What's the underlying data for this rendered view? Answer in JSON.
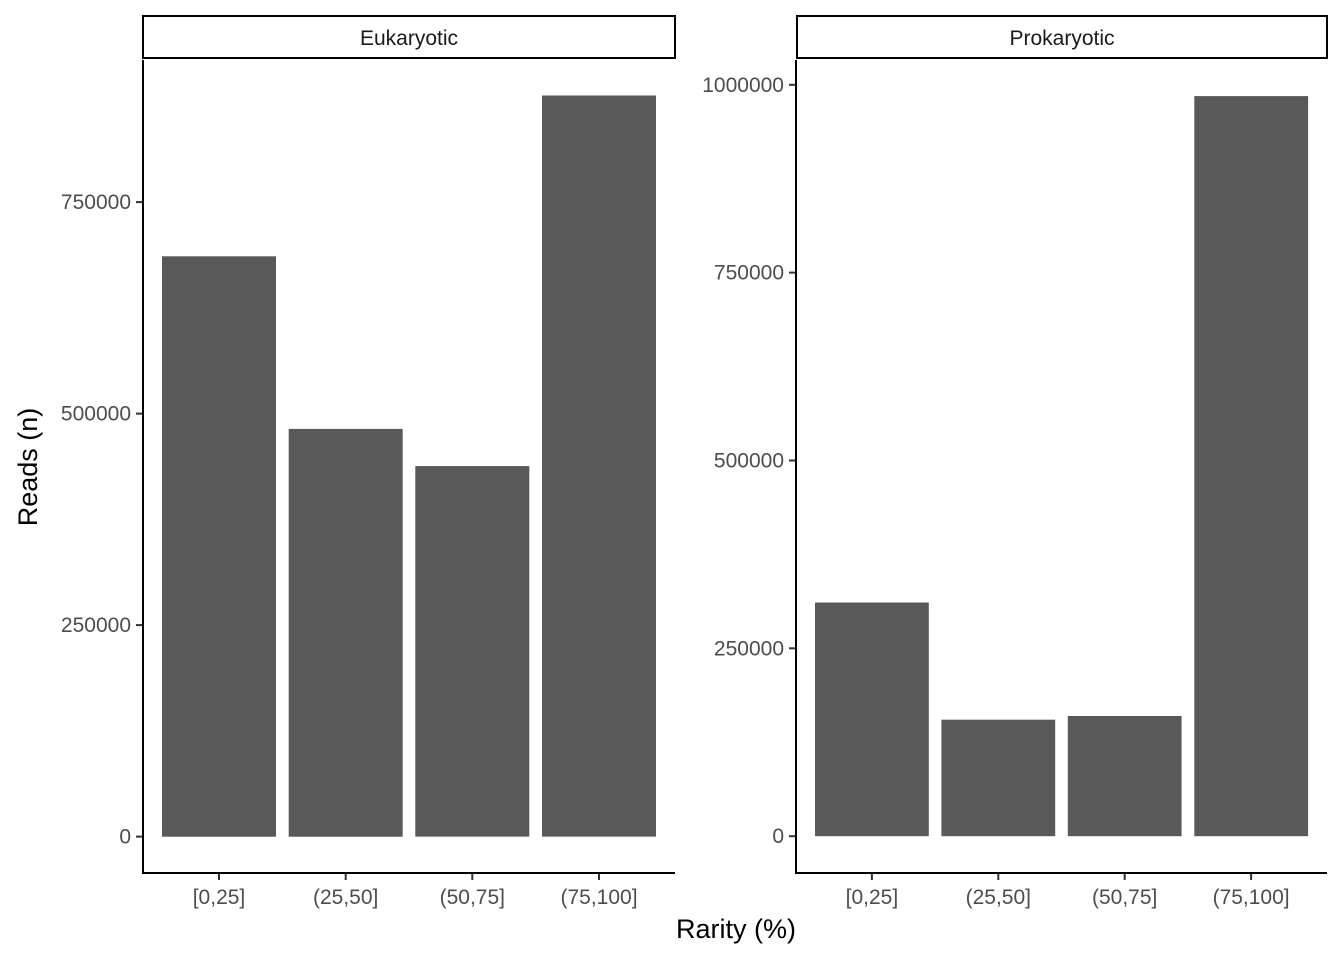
{
  "chart_data": {
    "type": "bar",
    "xlabel": "Rarity (%)",
    "ylabel": "Reads (n)",
    "grid": false,
    "bar_color": "#595959",
    "panels": [
      {
        "strip": "Eukaryotic",
        "categories": [
          "[0,25]",
          "(25,50]",
          "(50,75]",
          "(75,100]"
        ],
        "values": [
          686000,
          482000,
          438000,
          876000
        ],
        "ylim": [
          -43000,
          918000
        ],
        "yticks": [
          0,
          250000,
          500000,
          750000
        ],
        "ytick_labels": [
          "0",
          "250000",
          "500000",
          "750000"
        ]
      },
      {
        "strip": "Prokaryotic",
        "categories": [
          "[0,25]",
          "(25,50]",
          "(50,75]",
          "(75,100]"
        ],
        "values": [
          311000,
          155000,
          160000,
          985000
        ],
        "ylim": [
          -49000,
          1033000
        ],
        "yticks": [
          0,
          250000,
          500000,
          750000,
          1000000
        ],
        "ytick_labels": [
          "0",
          "250000",
          "500000",
          "750000",
          "1000000"
        ]
      }
    ]
  }
}
